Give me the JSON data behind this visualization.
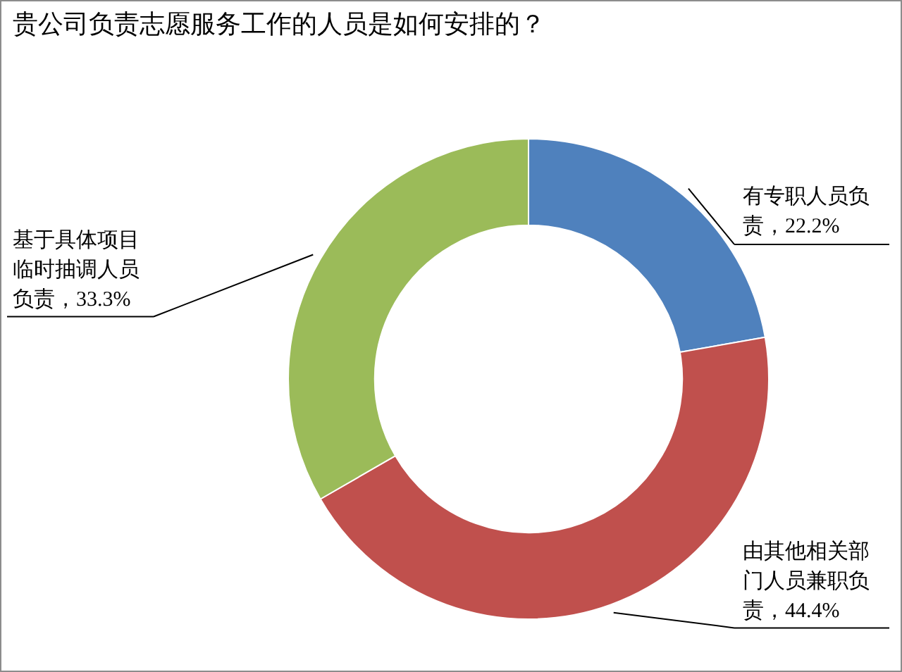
{
  "chart_data": {
    "type": "donut",
    "title": "贵公司负责志愿服务工作的人员是如何安排的？",
    "categories": [
      "有专职人员负责",
      "由其他相关部门人员兼职负责",
      "基于具体项目临时抽调人员负责"
    ],
    "values": [
      22.2,
      44.4,
      33.3
    ],
    "colors": [
      "#4f81bd",
      "#c0504d",
      "#9bbb59"
    ],
    "value_labels": [
      "，22.2%",
      "，44.4%",
      "，33.3%"
    ],
    "legend": false
  }
}
